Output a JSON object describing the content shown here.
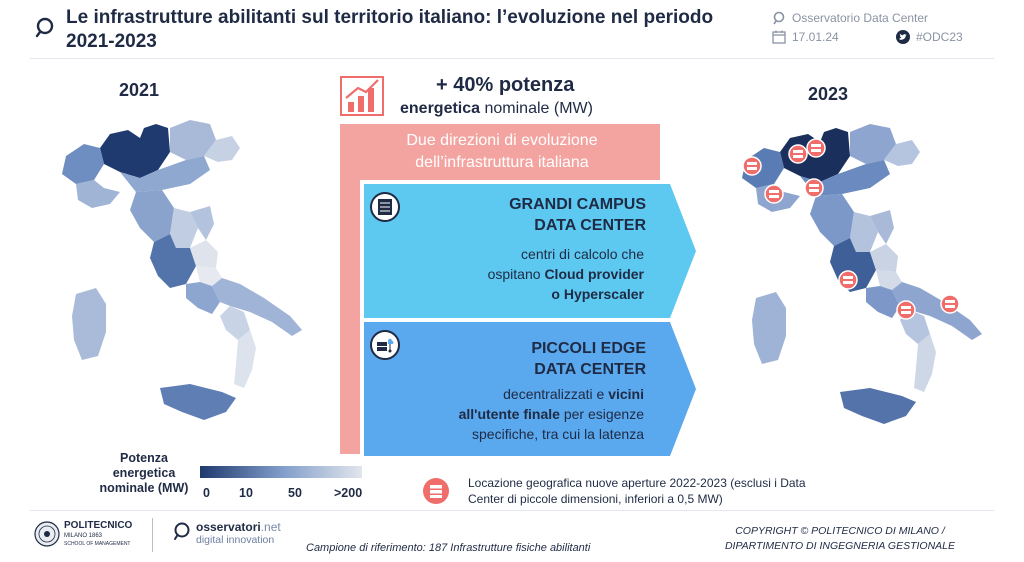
{
  "header": {
    "title": "Le infrastrutture abilitanti sul territorio italiano: l’evoluzione nel periodo 2021-2023",
    "source": "Osservatorio Data Center",
    "date": "17.01.24",
    "hashtag": "#ODC23"
  },
  "maps": {
    "left_year": "2021",
    "right_year": "2023"
  },
  "stat": {
    "big": "+ 40% potenza",
    "sub_bold": "energetica",
    "sub_rest": " nominale (MW)"
  },
  "banner": {
    "text": "Due direzioni di evoluzione dell’infrastruttura italiana"
  },
  "cards": {
    "campus": {
      "title_line1": "GRANDI CAMPUS",
      "title_line2": "DATA CENTER",
      "desc_line1": "centri di calcolo che",
      "desc_line2a": "ospitano ",
      "desc_line2b": "Cloud provider",
      "desc_line3": "o Hyperscaler"
    },
    "edge": {
      "title_line1": "PICCOLI EDGE",
      "title_line2": "DATA CENTER",
      "desc_line1a": "decentralizzati e ",
      "desc_line1b": "vicini",
      "desc_line2a": "all'utente finale",
      "desc_line2b": " per esigenze",
      "desc_line3": "specifiche, tra cui la latenza"
    }
  },
  "legend": {
    "label": "Potenza energetica nominale (MW)",
    "ticks": [
      "0",
      "10",
      "50",
      ">200"
    ],
    "location_text": "Locazione geografica nuove aperture 2022-2023 (esclusi i Data Center di piccole dimensioni, inferiori a 0,5 MW)"
  },
  "footer": {
    "poli_name": "POLITECNICO",
    "poli_sub": "MILANO 1863",
    "poli_sub2": "SCHOOL OF MANAGEMENT",
    "oss_name_a": "osservatori",
    "oss_name_b": ".net",
    "oss_sub": "digital innovation",
    "sample": "Campione di riferimento: 187 Infrastrutture fisiche abilitanti",
    "copyright_line1": "COPYRIGHT © POLITECNICO DI MILANO /",
    "copyright_line2": "DIPARTIMENTO DI INGEGNERIA GESTIONALE"
  },
  "colors": {
    "navy": "#1f2a44",
    "pink": "#f4a4a0",
    "cyan": "#5dc8f0",
    "blue": "#5aa8ee",
    "marker": "#ef6d6b"
  }
}
